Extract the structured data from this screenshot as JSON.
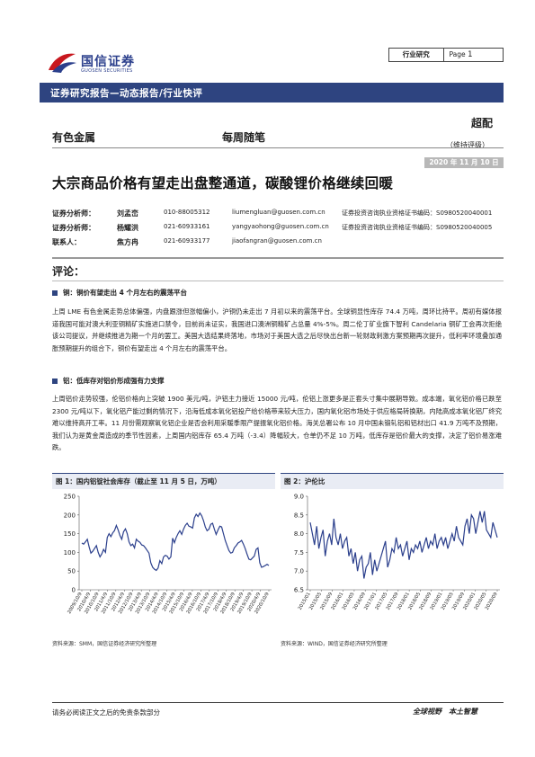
{
  "header": {
    "brand_cn": "国信证券",
    "brand_en": "GUOSEN SECURITIES",
    "category": "行业研究",
    "page_label": "Page",
    "page_number": "1",
    "band_text": "证券研究报告—动态报告/行业快评"
  },
  "meta": {
    "sector": "有色金属",
    "column": "每周随笔",
    "rating": "超配",
    "rating_note": "（维持评级）",
    "date": "2020 年 11 月 10 日",
    "title": "大宗商品价格有望走出盘整通道，碳酸锂价格继续回暖"
  },
  "analysts": [
    {
      "role": "证券分析师：",
      "name": "刘孟峦",
      "tel": "010-88005312",
      "email": "liumengluan@guosen.com.cn",
      "cert": "证券投资咨询执业资格证书编码：S0980520040001"
    },
    {
      "role": "证券分析师：",
      "name": "杨耀洪",
      "tel": "021-60933161",
      "email": "yangyaohong@guosen.com.cn",
      "cert": "证券投资咨询执业资格证书编码：S0980520040005"
    },
    {
      "role": "联系人：",
      "name": "焦方冉",
      "tel": "021-60933177",
      "email": "jiaofangran@guosen.com.cn",
      "cert": ""
    }
  ],
  "body": {
    "comment_heading": "评论：",
    "copper_heading": "铜：铜价有望走出 4 个月左右的震荡平台",
    "copper_text": "上周 LME 有色金属走势总体偏强，内盘跟涨但涨幅偏小，沪铜仍未走出 7 月初以来的震荡平台。全球铜显性库存 74.4 万吨，周环比持平。周初有媒体报道我国可能对澳大利亚铜精矿实施进口禁令，目前尚未证实，我国进口澳洲铜精矿占总量 4%-5%。周二伦丁矿业旗下智利 Candelaria 铜矿工会再次拒绝该公司提议，并继续推进为期一个月的罢工。美国大选结果终落地，市场对于美国大选之后尽快出台新一轮财政刺激方案预期再次提升，低利率环境叠加通胀预期提升的组合下，铜价有望走出 4 个月左右的震荡平台。",
    "aluminum_heading": "铝：低库存对铝价形成强有力支撑",
    "aluminum_text": "上周铝价走势较强，伦铝价格向上突破 1900 美元/吨，沪铝主力接近 15000 元/吨，伦铝上涨更多是正套头寸集中展期导致。成本端，氧化铝价格已跌至 2300 元/吨以下，氧化铝产能过剩的情况下，沿海低成本氧化铝投产给价格带来较大压力，国内氧化铝市场处于供应格局转换期，内陆高成本氧化铝厂终究难以维持高开工率。11 月份需观察氧化铝企业是否会利用采暖季限产提振氧化铝价格。海关总署公布 10 月中国未锻轧铝和铝材出口 41.9 万吨不及预期，我们认为是黄金周造成的季节性因素，上周国内铝库存 65.4 万吨（-3.4）降幅较大，仓单仍不足 10 万吨，低库存是铝价最大的支撑，决定了铝价易涨难跌。"
  },
  "figures": {
    "fig1_title": "图 1：国内铝锭社会库存（截止至 11 月 5 日，万吨）",
    "fig2_title": "图 2：沪伦比",
    "fig1_source": "资料来源：SMM，国信证券经济研究所整理",
    "fig2_source": "资料来源：WIND，国信证券经济研究所整理"
  },
  "chart_data": [
    {
      "type": "line",
      "title": "图 1：国内铝锭社会库存（截止至 11 月 5 日，万吨）",
      "ylim": [
        0,
        250
      ],
      "yticks": [
        0,
        50,
        100,
        150,
        200,
        250
      ],
      "xticks": [
        "2009/10/9",
        "2010/4/9",
        "2010/10/9",
        "2011/4/9",
        "2011/10/9",
        "2012/4/9",
        "2012/10/9",
        "2013/4/9",
        "2013/10/9",
        "2014/4/9",
        "2014/10/9",
        "2015/4/9",
        "2015/10/9",
        "2016/4/9",
        "2016/10/9",
        "2017/4/9",
        "2017/10/9",
        "2018/4/9",
        "2018/10/9",
        "2019/4/9",
        "2019/10/9",
        "2020/4/9",
        "2020/10/9"
      ],
      "color": "#2b3f8c",
      "values": [
        125,
        122,
        128,
        135,
        115,
        98,
        103,
        110,
        118,
        100,
        88,
        96,
        108,
        100,
        140,
        150,
        142,
        152,
        158,
        172,
        160,
        145,
        135,
        155,
        163,
        150,
        128,
        118,
        122,
        112,
        135,
        130,
        127,
        120,
        118,
        112,
        105,
        98,
        72,
        60,
        55,
        52,
        58,
        78,
        70,
        88,
        92,
        90,
        82,
        88,
        138,
        126,
        140,
        150,
        158,
        148,
        162,
        172,
        178,
        170,
        168,
        165,
        192,
        202,
        196,
        205,
        198,
        185,
        168,
        158,
        162,
        175,
        178,
        162,
        148,
        160,
        170,
        168,
        150,
        132,
        118,
        105,
        98,
        100,
        112,
        118,
        125,
        128,
        132,
        122,
        110,
        95,
        82,
        80,
        85,
        90,
        108,
        112,
        72,
        60,
        62,
        65,
        68,
        65
      ]
    },
    {
      "type": "line",
      "title": "图 2：沪伦比",
      "ylim": [
        6.5,
        9.0
      ],
      "yticks": [
        6.5,
        7.0,
        7.5,
        8.0,
        8.5,
        9.0
      ],
      "xticks": [
        "2015/01",
        "2015/05",
        "2015/09",
        "2016/01",
        "2016/05",
        "2016/09",
        "2017/01",
        "2017/05",
        "2017/09",
        "2018/01",
        "2018/05",
        "2018/09",
        "2019/01",
        "2019/05",
        "2019/09",
        "2020/01",
        "2020/05",
        "2020/09"
      ],
      "color": "#2b3f8c",
      "values": [
        8.3,
        8.0,
        7.7,
        8.2,
        7.6,
        7.9,
        8.1,
        7.4,
        7.8,
        8.0,
        7.7,
        8.4,
        7.9,
        7.7,
        8.0,
        7.6,
        7.8,
        7.9,
        7.4,
        7.6,
        7.2,
        7.5,
        7.0,
        7.3,
        7.4,
        6.8,
        7.1,
        7.2,
        7.5,
        6.9,
        7.3,
        7.0,
        7.2,
        7.4,
        7.6,
        7.8,
        7.1,
        7.3,
        7.6,
        7.5,
        7.9,
        7.6,
        7.7,
        7.4,
        7.6,
        7.8,
        7.3,
        7.6,
        7.5,
        7.7,
        7.6,
        7.8,
        7.5,
        7.7,
        7.9,
        7.6,
        7.8,
        7.7,
        8.0,
        7.6,
        7.8,
        7.9,
        7.7,
        7.9,
        7.6,
        7.8,
        8.0,
        7.8,
        8.2,
        7.9,
        7.8,
        7.7,
        8.2,
        8.4,
        8.0,
        8.5,
        8.4,
        8.0,
        8.3,
        8.6,
        8.3,
        8.6,
        8.1,
        8.0,
        7.9,
        8.3,
        8.1,
        7.9
      ]
    }
  ],
  "footer": {
    "disclaimer": "请务必阅读正文之后的免责条款部分",
    "slogan": "全球视野　本土智慧"
  }
}
